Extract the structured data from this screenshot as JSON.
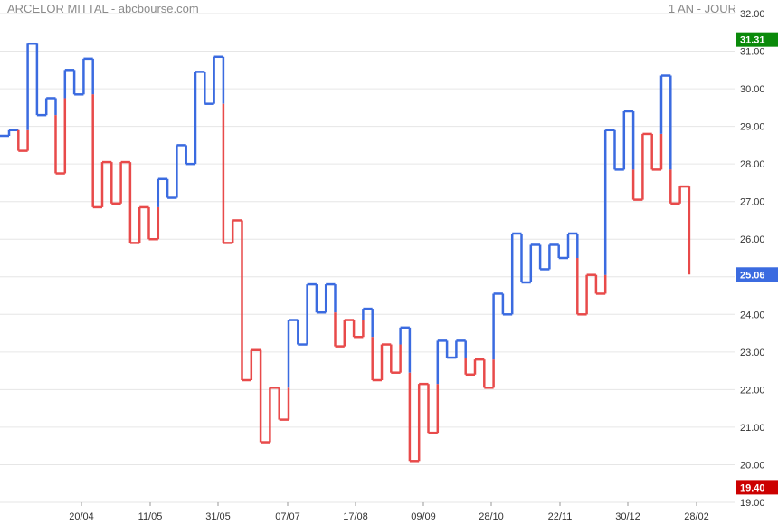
{
  "header": {
    "title": "ARCELOR MITTAL - abcbourse.com",
    "period": "1 AN - JOUR"
  },
  "colors": {
    "up": "#3b6be0",
    "down": "#e84a4a",
    "grid": "#e6e6e6",
    "high_badge": "#0a8a0a",
    "low_badge": "#cc0000",
    "last_badge": "#3b6be0"
  },
  "chart_data": {
    "type": "line",
    "style": "kagi",
    "ylim": [
      19.0,
      32.0
    ],
    "y_ticks": [
      "19.00",
      "20.00",
      "21.00",
      "22.00",
      "23.00",
      "24.00",
      "25.00",
      "26.00",
      "27.00",
      "28.00",
      "29.00",
      "30.00",
      "31.00",
      "32.00"
    ],
    "x_ticks": [
      "20/04",
      "11/05",
      "31/05",
      "07/07",
      "17/08",
      "09/09",
      "28/10",
      "22/11",
      "30/12",
      "28/02"
    ],
    "levels": [
      28.75,
      28.9,
      28.35,
      31.2,
      29.3,
      29.75,
      27.75,
      30.5,
      29.85,
      30.8,
      26.85,
      28.05,
      26.95,
      28.05,
      25.9,
      26.85,
      26.0,
      27.6,
      27.1,
      28.5,
      28.0,
      30.45,
      29.6,
      30.85,
      25.9,
      26.5,
      22.25,
      23.05,
      20.6,
      22.05,
      21.2,
      23.85,
      23.2,
      24.8,
      24.05,
      24.8,
      23.15,
      23.85,
      23.4,
      24.15,
      22.25,
      23.2,
      22.45,
      23.65,
      20.1,
      22.15,
      20.85,
      23.3,
      22.85,
      23.3,
      22.4,
      22.8,
      22.05,
      24.55,
      24.0,
      26.15,
      24.85,
      25.85,
      25.2,
      25.85,
      25.5,
      26.15,
      24.0,
      25.05,
      24.55,
      28.9,
      27.85,
      29.4,
      27.05,
      28.8,
      27.85,
      30.35,
      26.95,
      27.4,
      25.06
    ],
    "high": "31.31",
    "low": "19.40",
    "last": "25.06",
    "grid": true
  }
}
